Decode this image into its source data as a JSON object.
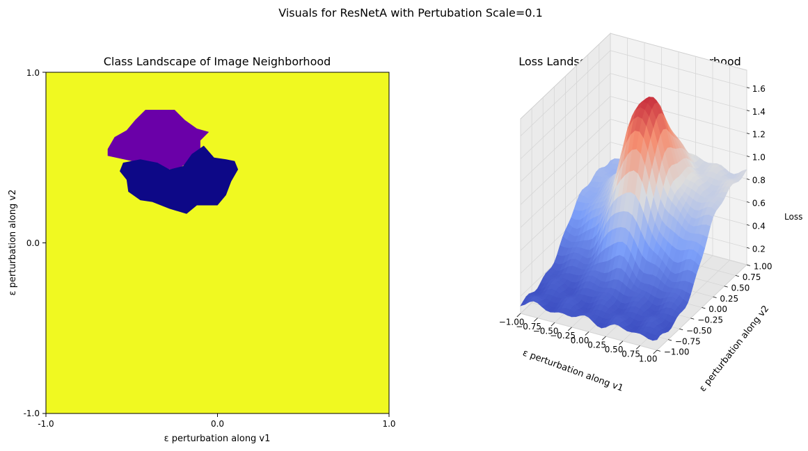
{
  "figure": {
    "suptitle": "Visuals for ResNetA with Pertubation Scale=0.1"
  },
  "chart_data": [
    {
      "type": "heatmap",
      "title": "Class Landscape of Image Neighborhood",
      "xlabel": "ε perturbation along v1",
      "ylabel": "ε perturbation along v2",
      "xlim": [
        -1.0,
        1.0
      ],
      "ylim": [
        -1.0,
        1.0
      ],
      "xticks": [
        "-1.0",
        "0.0",
        "1.0"
      ],
      "yticks": [
        "-1.0",
        "0.0",
        "1.0"
      ],
      "grid": false,
      "classes": [
        {
          "color": "#f0f921",
          "region": "background"
        },
        {
          "color": "#6a00a8",
          "region": "upper blob",
          "polygon": [
            [
              -0.42,
              0.78
            ],
            [
              -0.25,
              0.78
            ],
            [
              -0.19,
              0.72
            ],
            [
              -0.12,
              0.67
            ],
            [
              -0.05,
              0.65
            ],
            [
              -0.1,
              0.6
            ],
            [
              -0.1,
              0.52
            ],
            [
              -0.22,
              0.44
            ],
            [
              -0.35,
              0.42
            ],
            [
              -0.5,
              0.48
            ],
            [
              -0.64,
              0.51
            ],
            [
              -0.64,
              0.55
            ],
            [
              -0.6,
              0.62
            ],
            [
              -0.53,
              0.66
            ],
            [
              -0.48,
              0.72
            ]
          ]
        },
        {
          "color": "#0d0887",
          "region": "lower blob",
          "polygon": [
            [
              -0.55,
              0.47
            ],
            [
              -0.45,
              0.49
            ],
            [
              -0.35,
              0.47
            ],
            [
              -0.28,
              0.43
            ],
            [
              -0.2,
              0.45
            ],
            [
              -0.15,
              0.52
            ],
            [
              -0.08,
              0.57
            ],
            [
              -0.02,
              0.5
            ],
            [
              0.05,
              0.49
            ],
            [
              0.1,
              0.48
            ],
            [
              0.12,
              0.43
            ],
            [
              0.08,
              0.36
            ],
            [
              0.05,
              0.28
            ],
            [
              0.0,
              0.22
            ],
            [
              -0.12,
              0.22
            ],
            [
              -0.18,
              0.17
            ],
            [
              -0.28,
              0.2
            ],
            [
              -0.38,
              0.24
            ],
            [
              -0.45,
              0.25
            ],
            [
              -0.52,
              0.3
            ],
            [
              -0.53,
              0.37
            ],
            [
              -0.57,
              0.42
            ]
          ]
        }
      ]
    },
    {
      "type": "surface3d",
      "title": "Loss Landscape of Image Neighborhood",
      "xlabel": "ε perturbation along v1",
      "ylabel": "ε perturbation along v2",
      "zlabel": "Loss",
      "colormap": "coolwarm",
      "xticks": [
        "−1.00",
        "−0.75",
        "−0.50",
        "−0.25",
        "0.00",
        "0.25",
        "0.50",
        "0.75",
        "1.00"
      ],
      "yticks": [
        "−1.00",
        "−0.75",
        "−0.50",
        "−0.25",
        "0.00",
        "0.25",
        "0.50",
        "0.75",
        "1.00"
      ],
      "zticks": [
        "0.2",
        "0.4",
        "0.6",
        "0.8",
        "1.0",
        "1.2",
        "1.4",
        "1.6"
      ],
      "zlim": [
        0.05,
        1.75
      ],
      "surface": {
        "base": 0.15,
        "ridge": {
          "x": 0.95,
          "y": 0.0,
          "height": 0.7
        },
        "peak": {
          "x": -0.05,
          "y": 0.3,
          "height": 1.6
        },
        "z_min": 0.1,
        "z_max": 1.7
      }
    }
  ]
}
